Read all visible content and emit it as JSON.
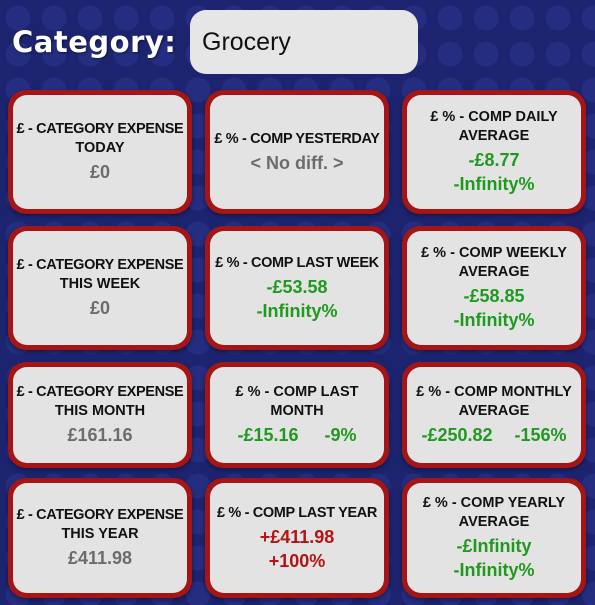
{
  "header": {
    "label": "Category:",
    "category_value": "Grocery"
  },
  "tiles": {
    "r1c1": {
      "title1": "£ - CATEGORY EXPENSE",
      "title2": "TODAY",
      "value": "£0"
    },
    "r1c2": {
      "title1": "£ % - COMP YESTERDAY",
      "value": "< No diff. >"
    },
    "r1c3": {
      "title1": "£ % - COMP DAILY",
      "title2": "AVERAGE",
      "value1": "-£8.77",
      "value2": "-Infinity%"
    },
    "r2c1": {
      "title1": "£ - CATEGORY EXPENSE",
      "title2": "THIS WEEK",
      "value": "£0"
    },
    "r2c2": {
      "title1": "£ % - COMP LAST WEEK",
      "value1": "-£53.58",
      "value2": "-Infinity%"
    },
    "r2c3": {
      "title1": "£ % - COMP WEEKLY",
      "title2": "AVERAGE",
      "value1": "-£58.85",
      "value2": "-Infinity%"
    },
    "r3c1": {
      "title1": "£ - CATEGORY EXPENSE",
      "title2": "THIS MONTH",
      "value": "£161.16"
    },
    "r3c2": {
      "title1": "£ % - COMP LAST",
      "title2": "MONTH",
      "value1": "-£15.16",
      "value2": "-9%"
    },
    "r3c3": {
      "title1": "£ % - COMP MONTHLY",
      "title2": "AVERAGE",
      "value1": "-£250.82",
      "value2": "-156%"
    },
    "r4c1": {
      "title1": "£ - CATEGORY EXPENSE",
      "title2": "THIS YEAR",
      "value": "£411.98"
    },
    "r4c2": {
      "title1": "£ % - COMP LAST YEAR",
      "value1": "+£411.98",
      "value2": "+100%"
    },
    "r4c3": {
      "title1": "£ % - COMP YEARLY",
      "title2": "AVERAGE",
      "value1": "-£Infinity",
      "value2": "-Infinity%"
    }
  },
  "colors": {
    "background": "#1c2470",
    "tile_border": "#a51515",
    "tile_fill": "#e3e3e3",
    "neutral_value": "#6c6c6c",
    "negative_diff": "#1f9a1f",
    "positive_diff": "#b31515"
  }
}
